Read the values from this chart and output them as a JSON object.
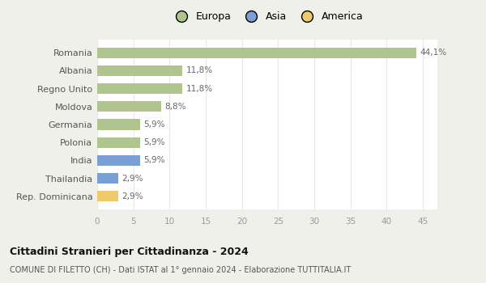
{
  "categories": [
    "Rep. Dominicana",
    "Thailandia",
    "India",
    "Polonia",
    "Germania",
    "Moldova",
    "Regno Unito",
    "Albania",
    "Romania"
  ],
  "values": [
    2.9,
    2.9,
    5.9,
    5.9,
    5.9,
    8.8,
    11.8,
    11.8,
    44.1
  ],
  "colors": [
    "#f0c96a",
    "#7a9fd4",
    "#7a9fd4",
    "#b0c48e",
    "#b0c48e",
    "#b0c48e",
    "#b0c48e",
    "#b0c48e",
    "#b0c48e"
  ],
  "labels": [
    "2,9%",
    "2,9%",
    "5,9%",
    "5,9%",
    "5,9%",
    "8,8%",
    "11,8%",
    "11,8%",
    "44,1%"
  ],
  "legend": [
    {
      "label": "Europa",
      "color": "#b0c48e"
    },
    {
      "label": "Asia",
      "color": "#7a9fd4"
    },
    {
      "label": "America",
      "color": "#f0c96a"
    }
  ],
  "xlim": [
    0,
    47
  ],
  "xticks": [
    0,
    5,
    10,
    15,
    20,
    25,
    30,
    35,
    40,
    45
  ],
  "title": "Cittadini Stranieri per Cittadinanza - 2024",
  "subtitle": "COMUNE DI FILETTO (CH) - Dati ISTAT al 1° gennaio 2024 - Elaborazione TUTTITALIA.IT",
  "bg_color": "#f0f0eb",
  "plot_bg_color": "#ffffff",
  "grid_color": "#e8e8e8",
  "bar_height": 0.6,
  "label_color": "#666666",
  "ytick_color": "#555555"
}
